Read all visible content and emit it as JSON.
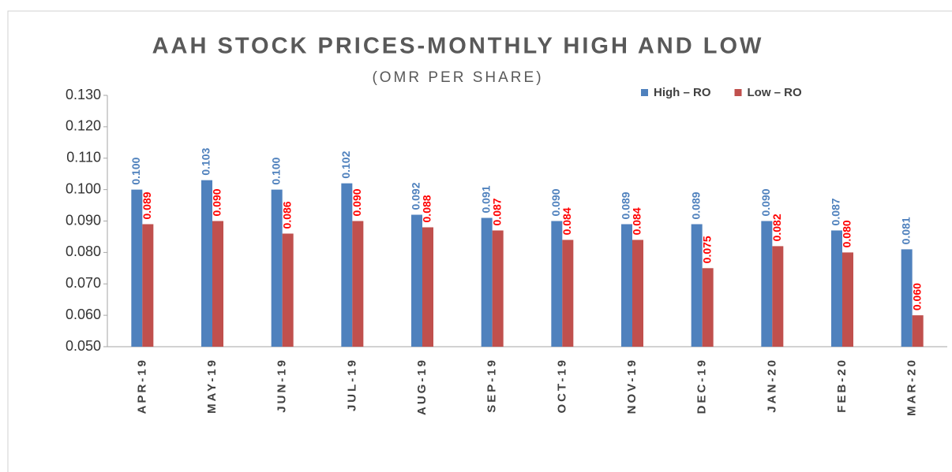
{
  "chart_data": {
    "type": "bar",
    "title": "AAH STOCK PRICES-MONTHLY HIGH AND LOW",
    "subtitle": "(OMR PER SHARE)",
    "categories": [
      "APR-19",
      "MAY-19",
      "JUN-19",
      "JUL-19",
      "AUG-19",
      "SEP-19",
      "OCT-19",
      "NOV-19",
      "DEC-19",
      "JAN-20",
      "FEB-20",
      "MAR-20"
    ],
    "series": [
      {
        "name": "High – RO",
        "color": "#4f81bd",
        "label_color": "#4f81bd",
        "values": [
          0.1,
          0.103,
          0.1,
          0.102,
          0.092,
          0.091,
          0.09,
          0.089,
          0.089,
          0.09,
          0.087,
          0.081
        ],
        "value_labels": [
          "0.100",
          "0.103",
          "0.100",
          "0.102",
          "0.092",
          "0.091",
          "0.090",
          "0.089",
          "0.089",
          "0.090",
          "0.087",
          "0.081"
        ]
      },
      {
        "name": "Low – RO",
        "color": "#c0504d",
        "label_color": "#ff0000",
        "values": [
          0.089,
          0.09,
          0.086,
          0.09,
          0.088,
          0.087,
          0.084,
          0.084,
          0.075,
          0.082,
          0.08,
          0.06
        ],
        "value_labels": [
          "0.089",
          "0.090",
          "0.086",
          "0.090",
          "0.088",
          "0.087",
          "0.084",
          "0.084",
          "0.075",
          "0.082",
          "0.080",
          "0.060"
        ]
      }
    ],
    "ylim": [
      0.05,
      0.13
    ],
    "yticks": [
      {
        "value": 0.05,
        "label": "0.050"
      },
      {
        "value": 0.06,
        "label": "0.060"
      },
      {
        "value": 0.07,
        "label": "0.070"
      },
      {
        "value": 0.08,
        "label": "0.080"
      },
      {
        "value": 0.09,
        "label": "0.090"
      },
      {
        "value": 0.1,
        "label": "0.100"
      },
      {
        "value": 0.11,
        "label": "0.110"
      },
      {
        "value": 0.12,
        "label": "0.120"
      },
      {
        "value": 0.13,
        "label": "0.130"
      }
    ],
    "grid": false,
    "legend": "top-right"
  }
}
